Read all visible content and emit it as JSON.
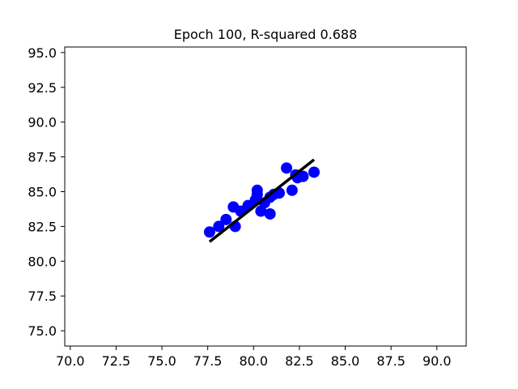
{
  "chart_data": {
    "type": "scatter",
    "title": "Epoch 100, R-squared 0.688",
    "xlabel": "",
    "ylabel": "",
    "xlim": [
      69.7,
      91.6
    ],
    "ylim": [
      73.9,
      95.4
    ],
    "xticks": [
      70.0,
      72.5,
      75.0,
      77.5,
      80.0,
      82.5,
      85.0,
      87.5,
      90.0
    ],
    "xtick_labels": [
      "70.0",
      "72.5",
      "75.0",
      "77.5",
      "80.0",
      "82.5",
      "85.0",
      "87.5",
      "90.0"
    ],
    "yticks": [
      75.0,
      77.5,
      80.0,
      82.5,
      85.0,
      87.5,
      90.0,
      92.5,
      95.0
    ],
    "ytick_labels": [
      "75.0",
      "77.5",
      "80.0",
      "82.5",
      "85.0",
      "87.5",
      "90.0",
      "92.5",
      "95.0"
    ],
    "grid": false,
    "series": [
      {
        "kind": "scatter",
        "color": "#0000ff",
        "points": [
          {
            "x": 77.6,
            "y": 82.1
          },
          {
            "x": 78.1,
            "y": 82.5
          },
          {
            "x": 78.5,
            "y": 83.0
          },
          {
            "x": 78.9,
            "y": 83.9
          },
          {
            "x": 79.0,
            "y": 82.5
          },
          {
            "x": 79.3,
            "y": 83.6
          },
          {
            "x": 79.7,
            "y": 84.0
          },
          {
            "x": 80.1,
            "y": 84.4
          },
          {
            "x": 80.2,
            "y": 85.1
          },
          {
            "x": 80.2,
            "y": 84.8
          },
          {
            "x": 80.4,
            "y": 83.6
          },
          {
            "x": 80.6,
            "y": 84.2
          },
          {
            "x": 80.9,
            "y": 83.4
          },
          {
            "x": 80.9,
            "y": 84.6
          },
          {
            "x": 81.1,
            "y": 84.8
          },
          {
            "x": 81.4,
            "y": 84.9
          },
          {
            "x": 81.8,
            "y": 86.7
          },
          {
            "x": 82.1,
            "y": 85.1
          },
          {
            "x": 82.3,
            "y": 86.2
          },
          {
            "x": 82.4,
            "y": 86.0
          },
          {
            "x": 82.7,
            "y": 86.1
          },
          {
            "x": 83.3,
            "y": 86.4
          }
        ]
      },
      {
        "kind": "line",
        "color": "#000000",
        "points": [
          {
            "x": 77.6,
            "y": 81.4
          },
          {
            "x": 83.3,
            "y": 87.3
          }
        ]
      }
    ]
  }
}
